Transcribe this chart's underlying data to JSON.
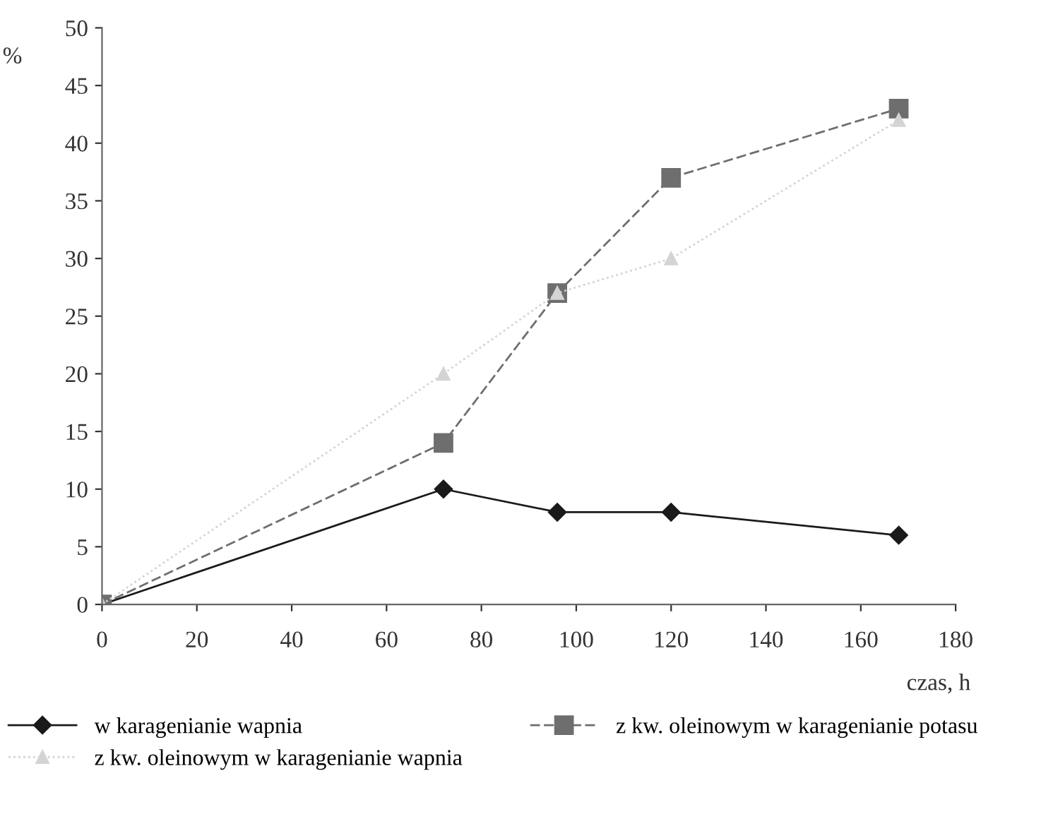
{
  "chart_data": {
    "type": "line",
    "ylabel": "%",
    "xlabel": "czas, h",
    "x": [
      0,
      72,
      96,
      120,
      168
    ],
    "series": [
      {
        "name": "w karagenianie wapnia",
        "color": "#1a1a1a",
        "values": [
          0,
          10,
          8,
          8,
          6
        ],
        "marker": "diamond",
        "line_style": "solid"
      },
      {
        "name": "z kw. oleinowym w karagenianie potasu",
        "color": "#6e6e6e",
        "values": [
          0,
          14,
          27,
          37,
          43
        ],
        "marker": "square",
        "line_style": "dashed"
      },
      {
        "name": "z kw. oleinowym w karagenianie wapnia",
        "color": "#d4d4d4",
        "values": [
          0,
          20,
          27,
          30,
          42
        ],
        "marker": "triangle",
        "line_style": "dotted"
      }
    ],
    "xlim": [
      0,
      180
    ],
    "xticks": [
      0,
      20,
      40,
      60,
      80,
      100,
      120,
      140,
      160,
      180
    ],
    "ylim": [
      0,
      50
    ],
    "yticks": [
      0,
      5,
      10,
      15,
      20,
      25,
      30,
      35,
      40,
      45,
      50
    ],
    "grid": false,
    "legend": "bottom"
  }
}
